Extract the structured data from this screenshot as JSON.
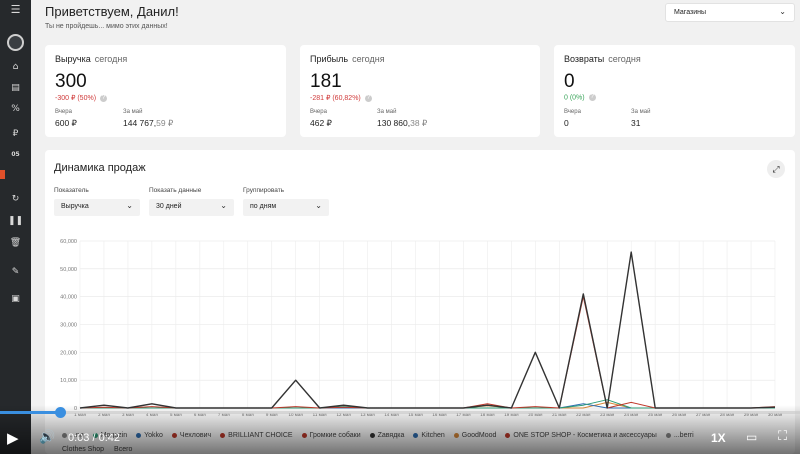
{
  "header": {
    "greeting": "Приветствуем, Данил!",
    "subtitle": "Ты не пройдешь... мимо этих данных!",
    "store_select": "Магазины"
  },
  "sidebar": {
    "icons": [
      "menu-icon",
      "avatar",
      "shop-icon",
      "clipboard-icon",
      "percent-icon",
      "ruble-icon",
      "badge-icon",
      "red-flag-icon",
      "refresh-icon",
      "pause-icon",
      "trash-icon",
      "pencil-icon",
      "camera-icon"
    ],
    "badge_text": "05",
    "accent": "#e0502a"
  },
  "cards": [
    {
      "title": "Выручка",
      "period": "сегодня",
      "value": "300",
      "delta": "-300 ₽ (50%)",
      "delta_color": "#d03a3a",
      "yesterday_label": "Вчера",
      "yesterday_value": "600 ₽",
      "month_label": "За май",
      "month_value_main": "144 767,",
      "month_value_cents": "59 ₽"
    },
    {
      "title": "Прибыль",
      "period": "сегодня",
      "value": "181",
      "delta": "-281 ₽ (60,82%)",
      "delta_color": "#d03a3a",
      "yesterday_label": "Вчера",
      "yesterday_value": "462 ₽",
      "month_label": "За май",
      "month_value_main": "130 860,",
      "month_value_cents": "38 ₽"
    },
    {
      "title": "Возвраты",
      "period": "сегодня",
      "value": "0",
      "delta": "0  (0%)",
      "delta_color": "#3aa55a",
      "yesterday_label": "Вчера",
      "yesterday_value": "0",
      "month_label": "За май",
      "month_value_main": "31",
      "month_value_cents": ""
    }
  ],
  "panel": {
    "title": "Динамика продаж",
    "filters": [
      {
        "label": "Показатель",
        "value": "Выручка"
      },
      {
        "label": "Показать данные",
        "value": "30 дней"
      },
      {
        "label": "Группировать",
        "value": "по дням"
      }
    ]
  },
  "chart_data": {
    "type": "line",
    "title": "Динамика продаж",
    "xlabel": "",
    "ylabel": "",
    "ylim": [
      0,
      60000
    ],
    "yticks": [
      "0",
      "10,000",
      "20,000",
      "30,000",
      "40,000",
      "50,000",
      "60,000"
    ],
    "categories": [
      "1 мая",
      "2 мая",
      "3 мая",
      "4 мая",
      "5 мая",
      "6 мая",
      "7 мая",
      "8 мая",
      "9 мая",
      "10 мая",
      "11 мая",
      "12 мая",
      "13 мая",
      "14 мая",
      "15 мая",
      "16 мая",
      "17 мая",
      "18 мая",
      "19 мая",
      "20 мая",
      "21 мая",
      "22 мая",
      "23 мая",
      "24 мая",
      "25 мая",
      "26 мая",
      "27 мая",
      "28 мая",
      "29 мая",
      "30 мая"
    ],
    "grid": true,
    "series": [
      {
        "name": "",
        "color": "#333333",
        "values": [
          0,
          1000,
          0,
          1500,
          0,
          0,
          0,
          0,
          0,
          10000,
          0,
          1000,
          0,
          0,
          0,
          0,
          0,
          1000,
          0,
          20000,
          0,
          41000,
          0,
          56000,
          0,
          0,
          0,
          0,
          0,
          300
        ]
      },
      {
        "name": "",
        "color": "#c0392b",
        "values": [
          0,
          300,
          0,
          500,
          0,
          0,
          0,
          0,
          0,
          500,
          0,
          300,
          0,
          0,
          0,
          0,
          0,
          1500,
          0,
          500,
          0,
          40000,
          0,
          2000,
          0,
          0,
          0,
          0,
          0,
          500
        ]
      },
      {
        "name": "",
        "color": "#2e9e78",
        "values": [
          0,
          0,
          0,
          0,
          0,
          0,
          0,
          0,
          0,
          0,
          0,
          500,
          0,
          0,
          0,
          0,
          0,
          0,
          0,
          0,
          0,
          1000,
          3000,
          0,
          0,
          0,
          0,
          0,
          0,
          0
        ]
      },
      {
        "name": "",
        "color": "#2f6fb3",
        "values": [
          0,
          0,
          0,
          0,
          0,
          0,
          0,
          0,
          0,
          0,
          0,
          0,
          0,
          0,
          0,
          0,
          0,
          0,
          0,
          0,
          0,
          1500,
          0,
          0,
          0,
          0,
          0,
          0,
          0,
          0
        ]
      },
      {
        "name": "",
        "color": "#d8893a",
        "values": [
          0,
          0,
          0,
          0,
          0,
          0,
          0,
          0,
          0,
          0,
          0,
          0,
          0,
          0,
          0,
          0,
          0,
          800,
          0,
          0,
          0,
          0,
          2000,
          0,
          0,
          0,
          0,
          0,
          0,
          0
        ]
      }
    ]
  },
  "legend": {
    "items": [
      {
        "label": "...ng",
        "color": "#888888"
      },
      {
        "label": "Mogazin",
        "color": "#2e9e78"
      },
      {
        "label": "Yokko",
        "color": "#2f6fb3"
      },
      {
        "label": "Чехлович",
        "color": "#c0392b"
      },
      {
        "label": "BRILLIANT CHOICE",
        "color": "#c0392b"
      },
      {
        "label": "Громкие собаки",
        "color": "#c0392b"
      },
      {
        "label": "Zaвядка",
        "color": "#333333"
      },
      {
        "label": "Kitchen",
        "color": "#2f6fb3"
      },
      {
        "label": "GoodMood",
        "color": "#d8893a"
      },
      {
        "label": "ONE STOP SHOP - Косметика и аксессуары",
        "color": "#c0392b"
      },
      {
        "label": "...berri",
        "color": "#888888"
      }
    ],
    "row2": [
      "Clothes Shop",
      "Всего"
    ]
  },
  "player": {
    "time": "0:03 / 0:42",
    "progress": 0.075,
    "speed": "1X",
    "accent": "#3a8fe0"
  }
}
